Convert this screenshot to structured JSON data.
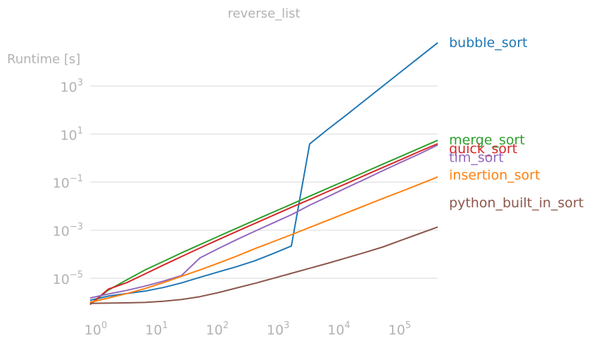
{
  "chart_data": {
    "type": "line",
    "title": "reverse_list",
    "xlabel": "",
    "ylabel": "Runtime [s]",
    "x_scale": "log",
    "y_scale": "log",
    "xlim": [
      1,
      524288
    ],
    "ylim": [
      3e-07,
      30000
    ],
    "grid": "horizontal",
    "legend": "inline-right",
    "x_ticks": [
      {
        "value": 1,
        "base": "10",
        "exp": "0"
      },
      {
        "value": 10,
        "base": "10",
        "exp": "1"
      },
      {
        "value": 100,
        "base": "10",
        "exp": "2"
      },
      {
        "value": 1000,
        "base": "10",
        "exp": "3"
      },
      {
        "value": 10000,
        "base": "10",
        "exp": "4"
      },
      {
        "value": 100000,
        "base": "10",
        "exp": "5"
      }
    ],
    "y_ticks": [
      {
        "value": 1e-05,
        "base": "10",
        "exp": "−5"
      },
      {
        "value": 0.001,
        "base": "10",
        "exp": "−3"
      },
      {
        "value": 0.1,
        "base": "10",
        "exp": "−1"
      },
      {
        "value": 10,
        "base": "10",
        "exp": "1"
      },
      {
        "value": 1000,
        "base": "10",
        "exp": "3"
      }
    ],
    "x": [
      1,
      2,
      4,
      8,
      16,
      32,
      64,
      128,
      256,
      512,
      1024,
      2048,
      4096,
      8192,
      16384,
      32768,
      65536,
      131072,
      262144,
      524288
    ],
    "series": [
      {
        "name": "bubble_sort",
        "color": "#1f77b4",
        "values": [
          1.2e-06,
          1.8e-06,
          2.3e-06,
          2.9e-06,
          4.1e-06,
          6.4e-06,
          1.09e-05,
          1.82e-05,
          3e-05,
          5.3e-05,
          0.000106,
          0.000219,
          3.9,
          16,
          62,
          250,
          1000,
          4000,
          16000,
          64000
        ]
      },
      {
        "name": "merge_sort",
        "color": "#2ca02c",
        "values": [
          8e-07,
          3.2e-06,
          8.5e-06,
          2.2e-05,
          5e-05,
          0.000114,
          0.00025,
          0.00055,
          0.0012,
          0.0026,
          0.0056,
          0.012,
          0.026,
          0.056,
          0.12,
          0.26,
          0.56,
          1.2,
          2.6,
          5.5
        ]
      },
      {
        "name": "quick_sort",
        "color": "#d62728",
        "values": [
          8e-07,
          3.5e-06,
          6.5e-06,
          1.5e-05,
          3.5e-05,
          8e-05,
          0.00018,
          0.0004,
          0.00087,
          0.0019,
          0.0041,
          0.0089,
          0.019,
          0.041,
          0.087,
          0.19,
          0.41,
          0.87,
          1.9,
          4.0
        ]
      },
      {
        "name": "tim_sort",
        "color": "#9467bd",
        "values": [
          1.5e-06,
          2.2e-06,
          3.1e-06,
          4.7e-06,
          7.5e-06,
          1.3e-05,
          7e-05,
          0.00017,
          0.0004,
          0.0009,
          0.002,
          0.0044,
          0.011,
          0.025,
          0.058,
          0.13,
          0.3,
          0.68,
          1.5,
          3.5
        ]
      },
      {
        "name": "insertion_sort",
        "color": "#ff7f0e",
        "values": [
          1e-06,
          1.5e-06,
          2.3e-06,
          3.7e-06,
          6.5e-06,
          1.2e-05,
          2.2e-05,
          4.2e-05,
          8.2e-05,
          0.00017,
          0.00033,
          0.00065,
          0.0013,
          0.0026,
          0.0052,
          0.0104,
          0.021,
          0.041,
          0.082,
          0.165
        ]
      },
      {
        "name": "python_built_in_sort",
        "color": "#8c564b",
        "values": [
          9e-07,
          9.2e-07,
          9.4e-07,
          9.8e-07,
          1.1e-06,
          1.3e-06,
          1.7e-06,
          2.5e-06,
          3.9e-06,
          6.1e-06,
          9.8e-06,
          1.6e-05,
          2.6e-05,
          4.2e-05,
          7e-05,
          0.000117,
          0.0002,
          0.00038,
          0.00072,
          0.00135
        ]
      }
    ],
    "labels": [
      {
        "text": "bubble_sort",
        "series": "bubble_sort",
        "value": 64000
      },
      {
        "text": "merge_sort",
        "series": "merge_sort",
        "value": 5.5
      },
      {
        "text": "quick_sort",
        "series": "quick_sort",
        "value": 2.4
      },
      {
        "text": "tim_sort",
        "series": "tim_sort",
        "value": 1.05
      },
      {
        "text": "insertion_sort",
        "series": "insertion_sort",
        "value": 0.19
      },
      {
        "text": "python_built_in_sort",
        "series": "python_built_in_sort",
        "value": 0.0135
      }
    ]
  }
}
